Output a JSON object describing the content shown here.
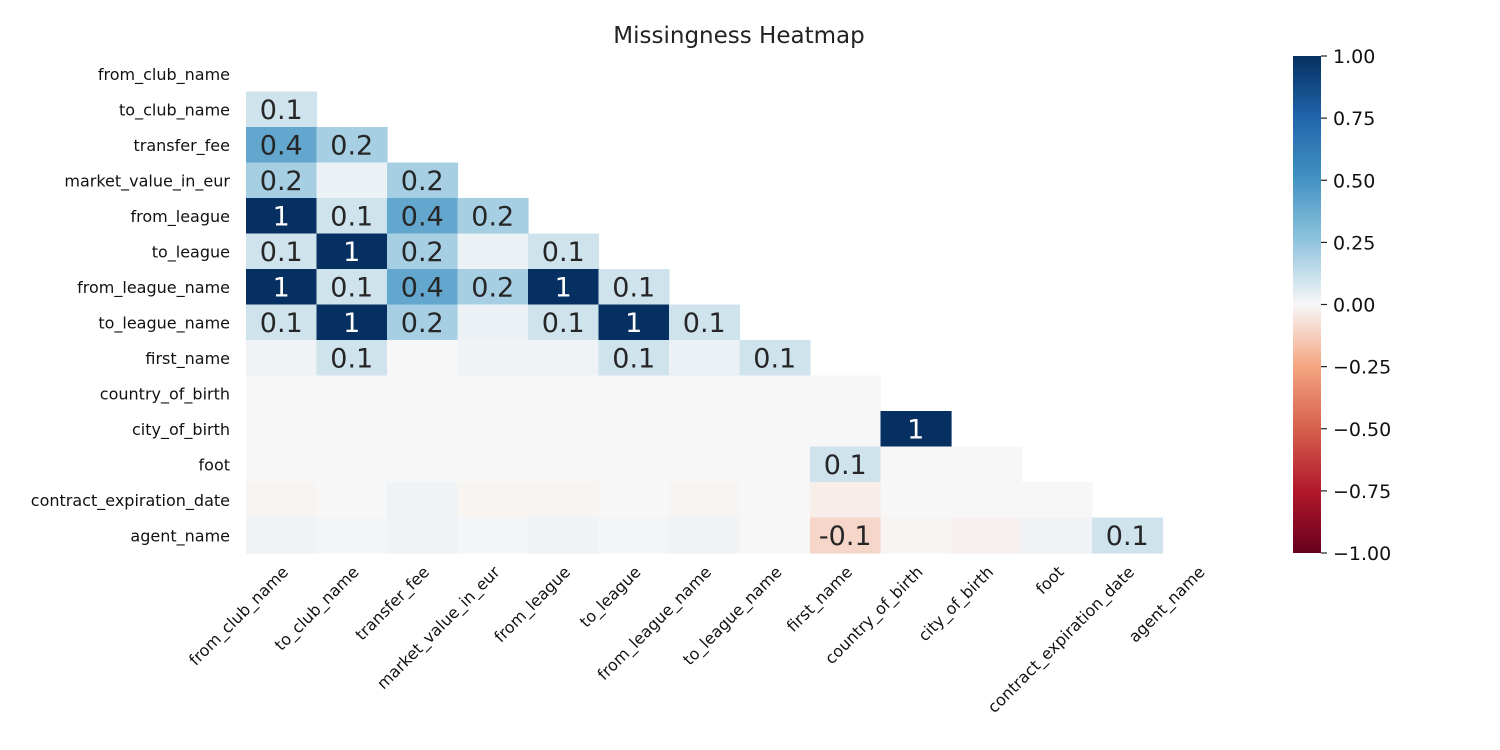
{
  "chart_data": {
    "type": "heatmap",
    "title": "Missingness Heatmap",
    "rows": [
      "from_club_name",
      "to_club_name",
      "transfer_fee",
      "market_value_in_eur",
      "from_league",
      "to_league",
      "from_league_name",
      "to_league_name",
      "first_name",
      "country_of_birth",
      "city_of_birth",
      "foot",
      "contract_expiration_date",
      "agent_name"
    ],
    "columns": [
      "from_club_name",
      "to_club_name",
      "transfer_fee",
      "market_value_in_eur",
      "from_league",
      "to_league",
      "from_league_name",
      "to_league_name",
      "first_name",
      "country_of_birth",
      "city_of_birth",
      "foot",
      "contract_expiration_date",
      "agent_name"
    ],
    "mask": "upper-triangle",
    "values": [
      [],
      [
        0.1
      ],
      [
        0.4,
        0.2
      ],
      [
        0.2,
        0.03,
        0.2
      ],
      [
        1,
        0.1,
        0.4,
        0.2
      ],
      [
        0.1,
        1,
        0.2,
        0.03,
        0.1
      ],
      [
        1,
        0.1,
        0.4,
        0.2,
        1,
        0.1
      ],
      [
        0.1,
        1,
        0.2,
        0.03,
        0.1,
        1,
        0.1
      ],
      [
        0.02,
        0.1,
        0.0,
        0.02,
        0.02,
        0.1,
        0.03,
        0.1
      ],
      [
        0,
        0,
        0,
        0,
        0,
        0,
        0,
        0,
        0
      ],
      [
        0,
        0,
        0,
        0,
        0,
        0,
        0,
        0,
        0,
        1
      ],
      [
        0,
        0,
        0,
        0,
        0,
        0,
        0,
        0,
        0.1,
        0,
        0
      ],
      [
        -0.01,
        0,
        0.02,
        -0.01,
        -0.01,
        0,
        -0.01,
        0,
        -0.03,
        0,
        0,
        0
      ],
      [
        0.02,
        0.01,
        0.02,
        0.01,
        0.02,
        0.01,
        0.02,
        0,
        -0.1,
        -0.01,
        -0.02,
        0.02,
        0.1
      ]
    ],
    "annotations": [
      [],
      [
        "0.1"
      ],
      [
        "0.4",
        "0.2"
      ],
      [
        "0.2",
        "",
        "0.2"
      ],
      [
        "1",
        "0.1",
        "0.4",
        "0.2"
      ],
      [
        "0.1",
        "1",
        "0.2",
        "",
        "0.1"
      ],
      [
        "1",
        "0.1",
        "0.4",
        "0.2",
        "1",
        "0.1"
      ],
      [
        "0.1",
        "1",
        "0.2",
        "",
        "0.1",
        "1",
        "0.1"
      ],
      [
        "",
        "0.1",
        "",
        "",
        "",
        "0.1",
        "",
        "0.1"
      ],
      [
        "",
        "",
        "",
        "",
        "",
        "",
        "",
        "",
        ""
      ],
      [
        "",
        "",
        "",
        "",
        "",
        "",
        "",
        "",
        "",
        "1"
      ],
      [
        "",
        "",
        "",
        "",
        "",
        "",
        "",
        "",
        "0.1",
        "",
        ""
      ],
      [
        "",
        "",
        "",
        "",
        "",
        "",
        "",
        "",
        "",
        "",
        "",
        ""
      ],
      [
        "",
        "",
        "",
        "",
        "",
        "",
        "",
        "",
        "-0.1",
        "",
        "",
        "",
        "0.1"
      ]
    ],
    "colorbar": {
      "colormap": "RdBu",
      "vmin": -1,
      "vmax": 1,
      "ticks": [
        "1.00",
        "0.75",
        "0.50",
        "0.25",
        "0.00",
        "−0.25",
        "−0.50",
        "−0.75",
        "−1.00"
      ],
      "tick_values": [
        1,
        0.75,
        0.5,
        0.25,
        0,
        -0.25,
        -0.5,
        -0.75,
        -1
      ]
    },
    "grid": false,
    "legend": "colorbar-right"
  }
}
